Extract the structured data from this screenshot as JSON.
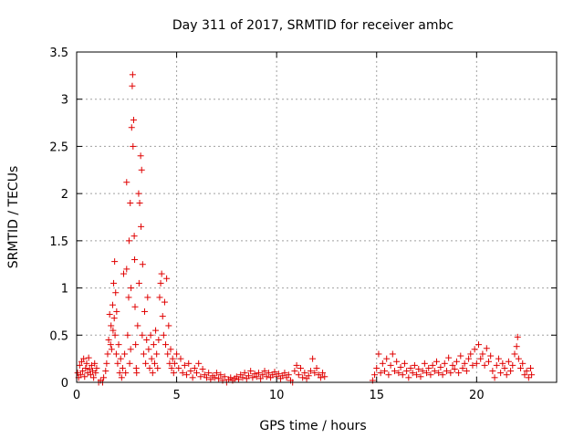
{
  "chart_data": {
    "type": "scatter",
    "title": "Day 311 of 2017, SRMTID for receiver ambc",
    "xlabel": "GPS time / hours",
    "ylabel": "SRMTID / TECUs",
    "xlim": [
      0,
      24
    ],
    "ylim": [
      0,
      3.5
    ],
    "xticks": [
      0,
      5,
      10,
      15,
      20
    ],
    "xtick_labels": [
      "0",
      "5",
      "10",
      "15",
      "20"
    ],
    "yticks": [
      0,
      0.5,
      1,
      1.5,
      2,
      2.5,
      3,
      3.5
    ],
    "ytick_labels": [
      "0",
      "0.5",
      "1",
      "1.5",
      "2",
      "2.5",
      "3",
      "3.5"
    ],
    "grid": true,
    "marker": "plus",
    "color": "#e00000",
    "series": [
      {
        "name": "SRMTID",
        "points": [
          [
            0.05,
            0.1
          ],
          [
            0.1,
            0.05
          ],
          [
            0.15,
            0.18
          ],
          [
            0.2,
            0.08
          ],
          [
            0.25,
            0.22
          ],
          [
            0.3,
            0.12
          ],
          [
            0.35,
            0.25
          ],
          [
            0.4,
            0.06
          ],
          [
            0.45,
            0.15
          ],
          [
            0.5,
            0.2
          ],
          [
            0.55,
            0.1
          ],
          [
            0.6,
            0.26
          ],
          [
            0.65,
            0.14
          ],
          [
            0.7,
            0.08
          ],
          [
            0.75,
            0.18
          ],
          [
            0.8,
            0.12
          ],
          [
            0.85,
            0.05
          ],
          [
            0.9,
            0.2
          ],
          [
            0.95,
            0.1
          ],
          [
            1.0,
            0.15
          ],
          [
            1.1,
            0.0
          ],
          [
            1.2,
            0.02
          ],
          [
            1.3,
            0.0
          ],
          [
            1.35,
            0.05
          ],
          [
            1.45,
            0.12
          ],
          [
            1.5,
            0.2
          ],
          [
            1.55,
            0.3
          ],
          [
            1.6,
            0.45
          ],
          [
            1.65,
            0.72
          ],
          [
            1.7,
            0.4
          ],
          [
            1.72,
            0.6
          ],
          [
            1.75,
            0.35
          ],
          [
            1.8,
            0.82
          ],
          [
            1.82,
            0.55
          ],
          [
            1.85,
            1.05
          ],
          [
            1.88,
            0.68
          ],
          [
            1.9,
            1.28
          ],
          [
            1.92,
            0.5
          ],
          [
            1.95,
            0.95
          ],
          [
            1.98,
            0.3
          ],
          [
            2.0,
            0.75
          ],
          [
            2.05,
            0.2
          ],
          [
            2.1,
            0.4
          ],
          [
            2.15,
            0.1
          ],
          [
            2.2,
            0.25
          ],
          [
            2.25,
            0.05
          ],
          [
            2.3,
            0.15
          ],
          [
            2.35,
            1.15
          ],
          [
            2.4,
            0.3
          ],
          [
            2.45,
            0.1
          ],
          [
            2.5,
            1.2
          ],
          [
            2.5,
            2.12
          ],
          [
            2.55,
            0.5
          ],
          [
            2.6,
            0.9
          ],
          [
            2.62,
            1.5
          ],
          [
            2.65,
            0.2
          ],
          [
            2.68,
            1.9
          ],
          [
            2.7,
            0.35
          ],
          [
            2.72,
            1.0
          ],
          [
            2.75,
            2.7
          ],
          [
            2.78,
            3.14
          ],
          [
            2.8,
            3.26
          ],
          [
            2.82,
            2.5
          ],
          [
            2.85,
            2.78
          ],
          [
            2.88,
            1.55
          ],
          [
            2.9,
            1.3
          ],
          [
            2.92,
            0.8
          ],
          [
            2.95,
            0.4
          ],
          [
            2.98,
            0.15
          ],
          [
            3.0,
            0.1
          ],
          [
            3.05,
            0.6
          ],
          [
            3.1,
            2.0
          ],
          [
            3.12,
            1.05
          ],
          [
            3.15,
            1.9
          ],
          [
            3.2,
            2.4
          ],
          [
            3.22,
            1.65
          ],
          [
            3.25,
            2.25
          ],
          [
            3.28,
            0.5
          ],
          [
            3.3,
            1.25
          ],
          [
            3.35,
            0.3
          ],
          [
            3.4,
            0.75
          ],
          [
            3.45,
            0.2
          ],
          [
            3.5,
            0.45
          ],
          [
            3.55,
            0.9
          ],
          [
            3.6,
            0.35
          ],
          [
            3.65,
            0.15
          ],
          [
            3.7,
            0.5
          ],
          [
            3.75,
            0.25
          ],
          [
            3.8,
            0.1
          ],
          [
            3.85,
            0.4
          ],
          [
            3.9,
            0.2
          ],
          [
            3.95,
            0.55
          ],
          [
            4.0,
            0.3
          ],
          [
            4.05,
            0.15
          ],
          [
            4.1,
            0.45
          ],
          [
            4.15,
            0.9
          ],
          [
            4.2,
            1.05
          ],
          [
            4.25,
            1.15
          ],
          [
            4.3,
            0.7
          ],
          [
            4.35,
            0.5
          ],
          [
            4.4,
            0.85
          ],
          [
            4.45,
            0.4
          ],
          [
            4.5,
            1.1
          ],
          [
            4.55,
            0.3
          ],
          [
            4.6,
            0.6
          ],
          [
            4.65,
            0.2
          ],
          [
            4.7,
            0.35
          ],
          [
            4.75,
            0.15
          ],
          [
            4.8,
            0.25
          ],
          [
            4.85,
            0.1
          ],
          [
            4.9,
            0.2
          ],
          [
            5.0,
            0.3
          ],
          [
            5.1,
            0.15
          ],
          [
            5.2,
            0.25
          ],
          [
            5.3,
            0.1
          ],
          [
            5.4,
            0.18
          ],
          [
            5.5,
            0.08
          ],
          [
            5.6,
            0.2
          ],
          [
            5.7,
            0.12
          ],
          [
            5.8,
            0.05
          ],
          [
            5.9,
            0.15
          ],
          [
            6.0,
            0.1
          ],
          [
            6.1,
            0.2
          ],
          [
            6.2,
            0.06
          ],
          [
            6.3,
            0.14
          ],
          [
            6.4,
            0.08
          ],
          [
            6.5,
            0.05
          ],
          [
            6.6,
            0.1
          ],
          [
            6.7,
            0.03
          ],
          [
            6.8,
            0.07
          ],
          [
            6.9,
            0.05
          ],
          [
            7.0,
            0.1
          ],
          [
            7.1,
            0.04
          ],
          [
            7.2,
            0.08
          ],
          [
            7.3,
            0.02
          ],
          [
            7.4,
            0.06
          ],
          [
            7.5,
            0.0
          ],
          [
            7.6,
            0.03
          ],
          [
            7.7,
            0.05
          ],
          [
            7.8,
            0.02
          ],
          [
            7.9,
            0.04
          ],
          [
            8.0,
            0.06
          ],
          [
            8.1,
            0.03
          ],
          [
            8.2,
            0.08
          ],
          [
            8.3,
            0.05
          ],
          [
            8.4,
            0.1
          ],
          [
            8.5,
            0.04
          ],
          [
            8.6,
            0.07
          ],
          [
            8.7,
            0.12
          ],
          [
            8.8,
            0.05
          ],
          [
            8.9,
            0.09
          ],
          [
            9.0,
            0.06
          ],
          [
            9.1,
            0.1
          ],
          [
            9.2,
            0.04
          ],
          [
            9.3,
            0.08
          ],
          [
            9.4,
            0.12
          ],
          [
            9.5,
            0.06
          ],
          [
            9.6,
            0.1
          ],
          [
            9.7,
            0.05
          ],
          [
            9.8,
            0.08
          ],
          [
            9.9,
            0.11
          ],
          [
            10.0,
            0.06
          ],
          [
            10.1,
            0.09
          ],
          [
            10.2,
            0.04
          ],
          [
            10.3,
            0.07
          ],
          [
            10.4,
            0.1
          ],
          [
            10.5,
            0.05
          ],
          [
            10.6,
            0.08
          ],
          [
            10.7,
            0.02
          ],
          [
            10.8,
            0.0
          ],
          [
            10.9,
            0.12
          ],
          [
            11.0,
            0.18
          ],
          [
            11.1,
            0.08
          ],
          [
            11.2,
            0.15
          ],
          [
            11.3,
            0.05
          ],
          [
            11.4,
            0.1
          ],
          [
            11.5,
            0.04
          ],
          [
            11.6,
            0.07
          ],
          [
            11.7,
            0.12
          ],
          [
            11.8,
            0.25
          ],
          [
            11.9,
            0.1
          ],
          [
            12.0,
            0.15
          ],
          [
            12.1,
            0.08
          ],
          [
            12.2,
            0.05
          ],
          [
            12.3,
            0.1
          ],
          [
            12.4,
            0.06
          ],
          [
            14.8,
            0.02
          ],
          [
            14.9,
            0.08
          ],
          [
            15.0,
            0.15
          ],
          [
            15.1,
            0.3
          ],
          [
            15.2,
            0.1
          ],
          [
            15.3,
            0.2
          ],
          [
            15.4,
            0.12
          ],
          [
            15.5,
            0.25
          ],
          [
            15.6,
            0.08
          ],
          [
            15.7,
            0.18
          ],
          [
            15.8,
            0.3
          ],
          [
            15.9,
            0.12
          ],
          [
            16.0,
            0.22
          ],
          [
            16.1,
            0.1
          ],
          [
            16.2,
            0.16
          ],
          [
            16.3,
            0.08
          ],
          [
            16.4,
            0.2
          ],
          [
            16.5,
            0.12
          ],
          [
            16.6,
            0.05
          ],
          [
            16.7,
            0.15
          ],
          [
            16.8,
            0.1
          ],
          [
            16.9,
            0.18
          ],
          [
            17.0,
            0.08
          ],
          [
            17.1,
            0.14
          ],
          [
            17.2,
            0.06
          ],
          [
            17.3,
            0.12
          ],
          [
            17.4,
            0.2
          ],
          [
            17.5,
            0.1
          ],
          [
            17.6,
            0.15
          ],
          [
            17.7,
            0.08
          ],
          [
            17.8,
            0.18
          ],
          [
            17.9,
            0.12
          ],
          [
            18.0,
            0.22
          ],
          [
            18.1,
            0.1
          ],
          [
            18.2,
            0.16
          ],
          [
            18.3,
            0.08
          ],
          [
            18.4,
            0.2
          ],
          [
            18.5,
            0.12
          ],
          [
            18.6,
            0.26
          ],
          [
            18.7,
            0.1
          ],
          [
            18.8,
            0.18
          ],
          [
            18.9,
            0.14
          ],
          [
            19.0,
            0.22
          ],
          [
            19.1,
            0.1
          ],
          [
            19.2,
            0.28
          ],
          [
            19.3,
            0.15
          ],
          [
            19.4,
            0.2
          ],
          [
            19.5,
            0.12
          ],
          [
            19.6,
            0.25
          ],
          [
            19.7,
            0.3
          ],
          [
            19.8,
            0.18
          ],
          [
            19.9,
            0.35
          ],
          [
            20.0,
            0.2
          ],
          [
            20.1,
            0.4
          ],
          [
            20.2,
            0.25
          ],
          [
            20.3,
            0.3
          ],
          [
            20.4,
            0.18
          ],
          [
            20.5,
            0.36
          ],
          [
            20.6,
            0.22
          ],
          [
            20.7,
            0.28
          ],
          [
            20.8,
            0.12
          ],
          [
            20.9,
            0.05
          ],
          [
            21.0,
            0.18
          ],
          [
            21.1,
            0.25
          ],
          [
            21.2,
            0.1
          ],
          [
            21.3,
            0.2
          ],
          [
            21.4,
            0.15
          ],
          [
            21.5,
            0.08
          ],
          [
            21.6,
            0.22
          ],
          [
            21.7,
            0.12
          ],
          [
            21.8,
            0.18
          ],
          [
            21.9,
            0.3
          ],
          [
            22.0,
            0.38
          ],
          [
            22.05,
            0.48
          ],
          [
            22.1,
            0.25
          ],
          [
            22.2,
            0.15
          ],
          [
            22.3,
            0.2
          ],
          [
            22.4,
            0.08
          ],
          [
            22.5,
            0.12
          ],
          [
            22.6,
            0.05
          ],
          [
            22.7,
            0.15
          ],
          [
            22.75,
            0.08
          ]
        ]
      }
    ]
  }
}
